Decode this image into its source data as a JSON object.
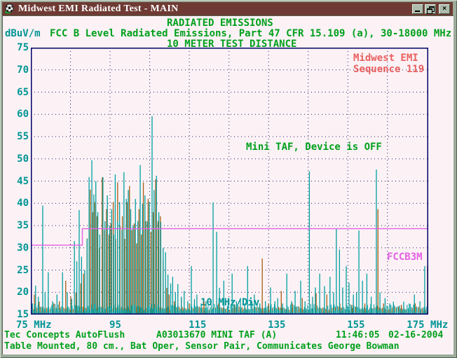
{
  "window": {
    "title": "Midwest EMI Radiated Test - MAIN",
    "icon": "soccer-ball",
    "controls": {
      "close_glyph": "×"
    }
  },
  "header": {
    "line1": "RADIATED EMISSIONS",
    "axis_unit": "dBuV/m",
    "line2": "FCC B Level Radiated Emissions, Part 47 CFR 15.109 (a), 30-18000 MHz",
    "line3": "10 METER TEST DISTANCE"
  },
  "annotations": {
    "sequence_line1": "Midwest EMI",
    "sequence_line2": "Sequence 119",
    "device_status": "Mini TAF, Device is OFF",
    "limit_label": "FCCB3M",
    "div_label": "10 MHz/Div"
  },
  "status_bar": {
    "line1_left": "Tec Concepts AutoFlush",
    "line1_mid": "A03013670 MINI TAF (A)",
    "line1_time": "11:46:05",
    "line1_date": "02-16-2004",
    "line2": "Table Mounted, 80 cm., Bat Oper, Sensor Pair, Communicates George Bowman"
  },
  "colors": {
    "titlebar": "#6e3a33",
    "frame": "#9cab9b",
    "content_bg": "#fcf2f5",
    "plot_border": "#00006a",
    "grid_dots": "#1c1c6e",
    "trace_teal": "#00a0a0",
    "trace_orange": "#a55d12",
    "limit_magenta": "#e35fe3",
    "text_green": "#00a01c",
    "text_teal": "#009595",
    "text_red": "#e86060"
  },
  "chart_data": {
    "type": "line",
    "subtype": "emi-spectrum-spikes",
    "title": "RADIATED EMISSIONS",
    "xlabel": "MHz",
    "ylabel": "dBuV/m",
    "xlim": [
      75,
      175.3
    ],
    "ylim": [
      15,
      75
    ],
    "x_div_mhz": 10,
    "grid": true,
    "x_ticks": [
      75,
      95,
      115,
      135,
      155,
      175
    ],
    "x_tick_labels": [
      "75 MHz",
      "95",
      "115",
      "135",
      "155",
      "175 MHz"
    ],
    "y_ticks": [
      75,
      70,
      65,
      60,
      55,
      50,
      45,
      40,
      35,
      30,
      25,
      20,
      15
    ],
    "limit_line": {
      "name": "FCCB3M",
      "points": [
        [
          75,
          30.6
        ],
        [
          88,
          30.6
        ],
        [
          88,
          34.3
        ],
        [
          175.3,
          34.3
        ]
      ]
    },
    "noise_floor_db": 16,
    "series": [
      {
        "name": "trace-orange",
        "color": "#a55d12",
        "baseline": 15,
        "spikes": [
          [
            75.9,
            19.5
          ],
          [
            77.1,
            17.9
          ],
          [
            79.4,
            18.7
          ],
          [
            80.8,
            17.5
          ],
          [
            82.2,
            18
          ],
          [
            83.8,
            22.6
          ],
          [
            85.1,
            19
          ],
          [
            86.4,
            20
          ],
          [
            87.6,
            22
          ],
          [
            88.3,
            24.2
          ],
          [
            89.2,
            32.1
          ],
          [
            90.0,
            43.1
          ],
          [
            90.6,
            38
          ],
          [
            91.1,
            40.3
          ],
          [
            91.7,
            37.1
          ],
          [
            92.3,
            30
          ],
          [
            93.0,
            45.8
          ],
          [
            93.6,
            34
          ],
          [
            94.1,
            38.7
          ],
          [
            94.7,
            33
          ],
          [
            95.2,
            35.5
          ],
          [
            95.8,
            40.3
          ],
          [
            96.4,
            32
          ],
          [
            96.9,
            44.7
          ],
          [
            97.5,
            35
          ],
          [
            98.1,
            37.1
          ],
          [
            98.7,
            32
          ],
          [
            99.3,
            40.3
          ],
          [
            99.9,
            43.9
          ],
          [
            100.5,
            34
          ],
          [
            101.1,
            35.5
          ],
          [
            101.7,
            31
          ],
          [
            102.3,
            38.7
          ],
          [
            102.9,
            33
          ],
          [
            103.4,
            44.7
          ],
          [
            104.0,
            36
          ],
          [
            104.6,
            41
          ],
          [
            105.3,
            33.6
          ],
          [
            105.9,
            38
          ],
          [
            106.5,
            45.4
          ],
          [
            107.1,
            36
          ],
          [
            107.7,
            37.1
          ],
          [
            108.4,
            27.3
          ],
          [
            109.3,
            21
          ],
          [
            109.9,
            19.5
          ],
          [
            111.2,
            18
          ],
          [
            113.0,
            18.7
          ],
          [
            115.0,
            17.5
          ],
          [
            118.7,
            17.9
          ],
          [
            122.4,
            17.5
          ],
          [
            126.4,
            17.2
          ],
          [
            133.4,
            27.6
          ],
          [
            135.0,
            17.5
          ],
          [
            138.2,
            20.3
          ],
          [
            141.0,
            17.5
          ],
          [
            143.5,
            18.7
          ],
          [
            147.0,
            19.8
          ],
          [
            149.7,
            19.5
          ],
          [
            153.0,
            17.5
          ],
          [
            156.0,
            17.2
          ],
          [
            159.3,
            17.5
          ],
          [
            162.6,
            38.7
          ],
          [
            164.0,
            17.5
          ],
          [
            168.5,
            17.2
          ],
          [
            172.0,
            17.5
          ],
          [
            175.1,
            25.9
          ]
        ]
      },
      {
        "name": "trace-teal",
        "color": "#00a0a0",
        "baseline": 15,
        "spikes": [
          [
            75.4,
            17.5
          ],
          [
            76.2,
            21.5
          ],
          [
            76.9,
            19
          ],
          [
            78.0,
            39.5
          ],
          [
            78.6,
            20
          ],
          [
            79.4,
            24.5
          ],
          [
            80.5,
            18
          ],
          [
            81.6,
            19.5
          ],
          [
            83.0,
            24.5
          ],
          [
            84.2,
            20
          ],
          [
            85.3,
            18.5
          ],
          [
            86.0,
            31.5
          ],
          [
            86.6,
            27
          ],
          [
            87.2,
            38.5
          ],
          [
            87.8,
            28
          ],
          [
            88.6,
            25
          ],
          [
            89.2,
            32
          ],
          [
            89.7,
            45.9
          ],
          [
            90.4,
            49.7
          ],
          [
            90.9,
            42
          ],
          [
            91.4,
            45
          ],
          [
            91.9,
            38
          ],
          [
            92.4,
            33
          ],
          [
            93.2,
            45.9
          ],
          [
            93.7,
            36
          ],
          [
            94.3,
            41.8
          ],
          [
            94.9,
            35
          ],
          [
            95.4,
            38.7
          ],
          [
            95.9,
            33
          ],
          [
            96.3,
            46.5
          ],
          [
            96.9,
            36
          ],
          [
            97.4,
            40.3
          ],
          [
            98.0,
            34
          ],
          [
            98.5,
            47
          ],
          [
            99.1,
            41
          ],
          [
            99.6,
            43
          ],
          [
            100.2,
            38.7
          ],
          [
            100.8,
            35
          ],
          [
            101.4,
            41
          ],
          [
            102.0,
            36
          ],
          [
            102.6,
            48.6
          ],
          [
            103.2,
            40
          ],
          [
            103.8,
            41.8
          ],
          [
            104.4,
            36
          ],
          [
            104.9,
            40.3
          ],
          [
            105.6,
            59.6
          ],
          [
            106.1,
            43
          ],
          [
            106.7,
            46.2
          ],
          [
            107.3,
            38
          ],
          [
            107.8,
            35.8
          ],
          [
            108.4,
            30
          ],
          [
            109.0,
            29
          ],
          [
            109.6,
            24
          ],
          [
            110.3,
            22
          ],
          [
            110.8,
            23.5
          ],
          [
            111.5,
            20
          ],
          [
            112.1,
            21.9
          ],
          [
            113.0,
            19
          ],
          [
            113.7,
            20.3
          ],
          [
            114.6,
            18
          ],
          [
            115.5,
            25.9
          ],
          [
            116.3,
            18.5
          ],
          [
            116.9,
            19.5
          ],
          [
            118.0,
            17.5
          ],
          [
            119.2,
            18
          ],
          [
            121.0,
            40.2
          ],
          [
            121.9,
            33.6
          ],
          [
            122.6,
            21
          ],
          [
            123.7,
            22.6
          ],
          [
            124.8,
            18.5
          ],
          [
            125.8,
            24.2
          ],
          [
            126.9,
            18
          ],
          [
            127.9,
            18.7
          ],
          [
            129.0,
            17.5
          ],
          [
            129.7,
            25.9
          ],
          [
            130.8,
            18
          ],
          [
            131.4,
            19.5
          ],
          [
            132.8,
            17.5
          ],
          [
            134.2,
            18
          ],
          [
            135.5,
            21.1
          ],
          [
            136.6,
            18
          ],
          [
            137.3,
            18.7
          ],
          [
            138.5,
            17.5
          ],
          [
            139.6,
            24.2
          ],
          [
            140.8,
            18
          ],
          [
            141.7,
            20.3
          ],
          [
            143.1,
            22.6
          ],
          [
            144.2,
            18
          ],
          [
            145.3,
            47.2
          ],
          [
            146.1,
            19
          ],
          [
            146.8,
            21.1
          ],
          [
            147.9,
            24.2
          ],
          [
            149.1,
            21.4
          ],
          [
            150.5,
            23.5
          ],
          [
            151.4,
            20
          ],
          [
            152.1,
            34.3
          ],
          [
            152.9,
            29.6
          ],
          [
            153.7,
            21.1
          ],
          [
            154.6,
            25.9
          ],
          [
            155.3,
            22.2
          ],
          [
            156.4,
            19.5
          ],
          [
            157.2,
            20
          ],
          [
            157.8,
            33.9
          ],
          [
            158.7,
            22.6
          ],
          [
            159.8,
            24.2
          ],
          [
            160.9,
            19
          ],
          [
            162.2,
            47.6
          ],
          [
            163.1,
            20
          ],
          [
            164.4,
            18.7
          ],
          [
            165.6,
            17.5
          ],
          [
            166.5,
            17.9
          ],
          [
            168.0,
            17
          ],
          [
            169.1,
            17.9
          ],
          [
            170.5,
            17.5
          ],
          [
            171.8,
            19.5
          ],
          [
            173.2,
            18
          ],
          [
            174.4,
            25.9
          ]
        ]
      }
    ]
  }
}
